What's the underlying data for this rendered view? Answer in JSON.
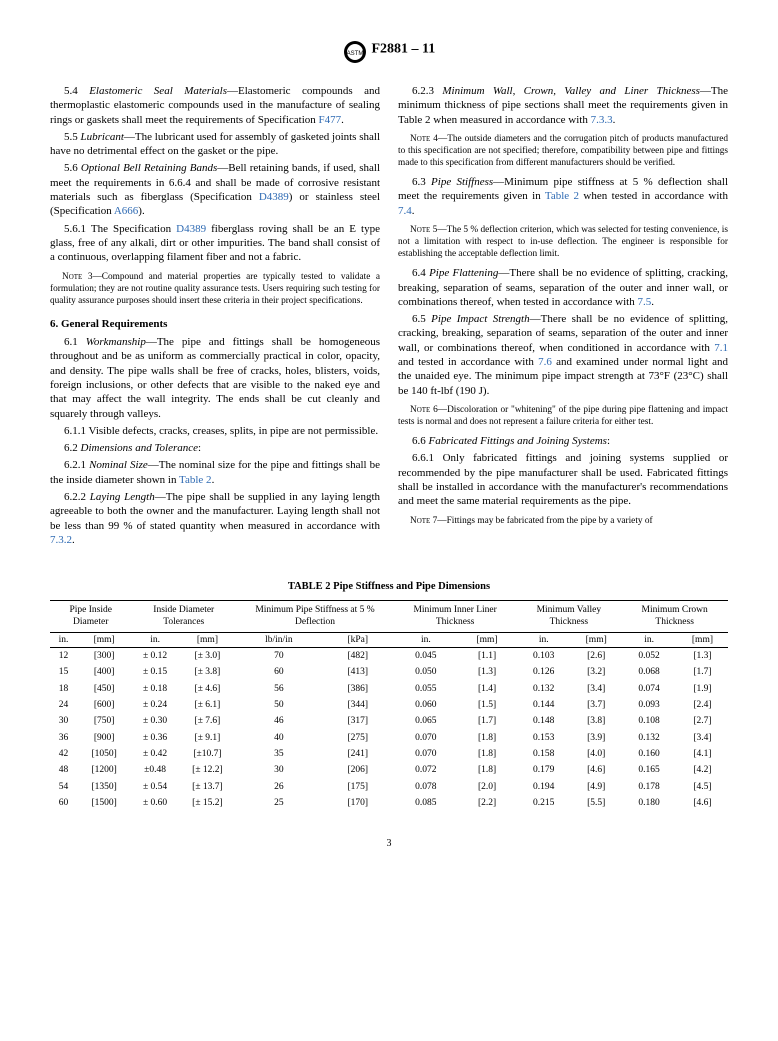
{
  "doc_code": "F2881 – 11",
  "left_col": {
    "p5_4": "5.4 Elastomeric Seal Materials—Elastomeric compounds and thermoplastic elastomeric compounds used in the manufacture of sealing rings or gaskets shall meet the requirements of Specification ",
    "p5_4_ref": "F477",
    "p5_4_end": ".",
    "p5_5": "5.5 Lubricant—The lubricant used for assembly of gasketed joints shall have no detrimental effect on the gasket or the pipe.",
    "p5_6": "5.6 Optional Bell Retaining Bands—Bell retaining bands, if used, shall meet the requirements in 6.6.4 and shall be made of corrosive resistant materials such as fiberglass (Specification ",
    "p5_6_ref1": "D4389",
    "p5_6_mid": ") or stainless steel (Specification ",
    "p5_6_ref2": "A666",
    "p5_6_end": ").",
    "p5_6_1a": "5.6.1 The Specification ",
    "p5_6_1_ref": "D4389",
    "p5_6_1b": " fiberglass roving shall be an E type glass, free of any alkali, dirt or other impurities. The band shall consist of a continuous, overlapping filament fiber and not a fabric.",
    "note3": "NOTE 3—Compound and material properties are typically tested to validate a formulation; they are not routine quality assurance tests. Users requiring such testing for quality assurance purposes should insert these criteria in their project specifications.",
    "sec6": "6. General Requirements",
    "p6_1": "6.1 Workmanship—The pipe and fittings shall be homogeneous throughout and be as uniform as commercially practical in color, opacity, and density. The pipe walls shall be free of cracks, holes, blisters, voids, foreign inclusions, or other defects that are visible to the naked eye and that may affect the wall integrity. The ends shall be cut cleanly and squarely through valleys.",
    "p6_1_1": "6.1.1 Visible defects, cracks, creases, splits, in pipe are not permissible.",
    "p6_2_head": "6.2 Dimensions and Tolerance:",
    "p6_2_1a": "6.2.1 Nominal Size—The nominal size for the pipe and fittings shall be the inside diameter shown in ",
    "p6_2_1_ref": "Table 2",
    "p6_2_1b": ".",
    "p6_2_2a": "6.2.2 Laying Length—The pipe shall be supplied in any laying length agreeable to both the owner and the manufacturer. Laying length shall not be less than 99 % of stated quantity when measured in accordance with ",
    "p6_2_2_ref": "7.3.2",
    "p6_2_2b": "."
  },
  "right_col": {
    "p6_2_3a": "6.2.3 Minimum Wall, Crown, Valley and Liner Thickness—The minimum thickness of pipe sections shall meet the requirements given in Table 2 when measured in accordance with ",
    "p6_2_3_ref": "7.3.3",
    "p6_2_3b": ".",
    "note4": "NOTE 4—The outside diameters and the corrugation pitch of products manufactured to this specification are not specified; therefore, compatibility between pipe and fittings made to this specification from different manufacturers should be verified.",
    "p6_3a": "6.3 Pipe Stiffness—Minimum pipe stiffness at 5 % deflection shall meet the requirements given in ",
    "p6_3_ref1": "Table 2",
    "p6_3b": " when tested in accordance with ",
    "p6_3_ref2": "7.4",
    "p6_3c": ".",
    "note5": "NOTE 5—The 5 % deflection criterion, which was selected for testing convenience, is not a limitation with respect to in-use deflection. The engineer is responsible for establishing the acceptable deflection limit.",
    "p6_4a": "6.4 Pipe Flattening—There shall be no evidence of splitting, cracking, breaking, separation of seams, separation of the outer and inner wall, or combinations thereof, when tested in accordance with ",
    "p6_4_ref": "7.5",
    "p6_4b": ".",
    "p6_5a": "6.5 Pipe Impact Strength—There shall be no evidence of splitting, cracking, breaking, separation of seams, separation of the outer and inner wall, or combinations thereof, when conditioned in accordance with ",
    "p6_5_ref1": "7.1",
    "p6_5b": " and tested in accordance with ",
    "p6_5_ref2": "7.6",
    "p6_5c": " and examined under normal light and the unaided eye. The minimum pipe impact strength at 73°F (23°C) shall be 140 ft-lbf (190 J).",
    "note6": "NOTE 6—Discoloration or \"whitening\" of the pipe during pipe flattening and impact tests is normal and does not represent a failure criteria for either test.",
    "p6_6_head": "6.6 Fabricated Fittings and Joining Systems:",
    "p6_6_1": "6.6.1 Only fabricated fittings and joining systems supplied or recommended by the pipe manufacturer shall be used. Fabricated fittings shall be installed in accordance with the manufacturer's recommendations and meet the same material requirements as the pipe.",
    "note7": "NOTE 7—Fittings may be fabricated from the pipe by a variety of"
  },
  "table": {
    "title": "TABLE 2 Pipe Stiffness and Pipe Dimensions",
    "headers": [
      "Pipe Inside Diameter",
      "Inside Diameter Tolerances",
      "Minimum Pipe Stiffness at 5 % Deflection",
      "Minimum Inner Liner Thickness",
      "Minimum Valley Thickness",
      "Minimum Crown Thickness"
    ],
    "units_row": [
      "in.",
      "[mm]",
      "in.",
      "[mm]",
      "lb/in/in",
      "[kPa]",
      "in.",
      "[mm]",
      "in.",
      "[mm]",
      "in.",
      "[mm]"
    ],
    "rows": [
      [
        "12",
        "[300]",
        "± 0.12",
        "[± 3.0]",
        "70",
        "[482]",
        "0.045",
        "[1.1]",
        "0.103",
        "[2.6]",
        "0.052",
        "[1.3]"
      ],
      [
        "15",
        "[400]",
        "± 0.15",
        "[± 3.8]",
        "60",
        "[413]",
        "0.050",
        "[1.3]",
        "0.126",
        "[3.2]",
        "0.068",
        "[1.7]"
      ],
      [
        "18",
        "[450]",
        "± 0.18",
        "[± 4.6]",
        "56",
        "[386]",
        "0.055",
        "[1.4]",
        "0.132",
        "[3.4]",
        "0.074",
        "[1.9]"
      ],
      [
        "24",
        "[600]",
        "± 0.24",
        "[± 6.1]",
        "50",
        "[344]",
        "0.060",
        "[1.5]",
        "0.144",
        "[3.7]",
        "0.093",
        "[2.4]"
      ],
      [
        "30",
        "[750]",
        "± 0.30",
        "[± 7.6]",
        "46",
        "[317]",
        "0.065",
        "[1.7]",
        "0.148",
        "[3.8]",
        "0.108",
        "[2.7]"
      ],
      [
        "36",
        "[900]",
        "± 0.36",
        "[± 9.1]",
        "40",
        "[275]",
        "0.070",
        "[1.8]",
        "0.153",
        "[3.9]",
        "0.132",
        "[3.4]"
      ],
      [
        "42",
        "[1050]",
        "± 0.42",
        "[±10.7]",
        "35",
        "[241]",
        "0.070",
        "[1.8]",
        "0.158",
        "[4.0]",
        "0.160",
        "[4.1]"
      ],
      [
        "48",
        "[1200]",
        "±0.48",
        "[± 12.2]",
        "30",
        "[206]",
        "0.072",
        "[1.8]",
        "0.179",
        "[4.6]",
        "0.165",
        "[4.2]"
      ],
      [
        "54",
        "[1350]",
        "± 0.54",
        "[± 13.7]",
        "26",
        "[175]",
        "0.078",
        "[2.0]",
        "0.194",
        "[4.9]",
        "0.178",
        "[4.5]"
      ],
      [
        "60",
        "[1500]",
        "± 0.60",
        "[± 15.2]",
        "25",
        "[170]",
        "0.085",
        "[2.2]",
        "0.215",
        "[5.5]",
        "0.180",
        "[4.6]"
      ]
    ]
  },
  "page_num": "3"
}
